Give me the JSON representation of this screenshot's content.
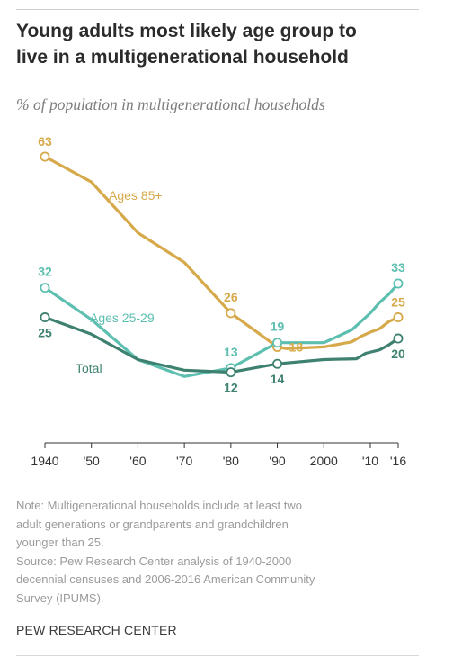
{
  "header": {
    "title_lines": [
      "Young adults most likely age group to",
      "live in a multigenerational household"
    ],
    "subtitle": "% of population in multigenerational households"
  },
  "colors": {
    "ages85": "#d6a94a",
    "ages2529": "#5dbfb0",
    "total": "#3f8170",
    "axis": "#333333",
    "tick_text": "#333333"
  },
  "chart_data": {
    "type": "line",
    "title": "Young adults most likely age group to live in a multigenerational household",
    "subtitle": "% of population in multigenerational households",
    "x_tick_values": [
      1940,
      1950,
      1960,
      1970,
      1980,
      1990,
      2000,
      2010,
      2016
    ],
    "x_tick_labels": [
      "1940",
      "'50",
      "'60",
      "'70",
      "'80",
      "'90",
      "2000",
      "'10",
      "'16"
    ],
    "xlim": [
      1940,
      2016
    ],
    "ylim": [
      0,
      63
    ],
    "series": [
      {
        "name": "Ages 85+",
        "color": "#d6a94a",
        "points": [
          [
            1940,
            63
          ],
          [
            1950,
            57
          ],
          [
            1960,
            45
          ],
          [
            1970,
            38
          ],
          [
            1980,
            26
          ],
          [
            1990,
            18
          ],
          [
            1992,
            17.6
          ],
          [
            2000,
            18
          ],
          [
            2006,
            19.2
          ],
          [
            2008,
            20.5
          ],
          [
            2010,
            21.5
          ],
          [
            2012,
            22.3
          ],
          [
            2014,
            24
          ],
          [
            2016,
            25
          ]
        ],
        "markers": [
          [
            1940,
            63,
            "63"
          ],
          [
            1980,
            26,
            "26"
          ],
          [
            1990,
            18,
            "18"
          ],
          [
            2016,
            25,
            "25"
          ]
        ]
      },
      {
        "name": "Ages 25-29",
        "color": "#5dbfb0",
        "points": [
          [
            1940,
            32
          ],
          [
            1950,
            24.5
          ],
          [
            1960,
            15
          ],
          [
            1970,
            11
          ],
          [
            1980,
            13
          ],
          [
            1990,
            19
          ],
          [
            2000,
            19
          ],
          [
            2006,
            22
          ],
          [
            2008,
            24
          ],
          [
            2010,
            26
          ],
          [
            2012,
            28.5
          ],
          [
            2014,
            30.5
          ],
          [
            2016,
            33
          ]
        ],
        "markers": [
          [
            1940,
            32,
            "32"
          ],
          [
            1980,
            13,
            "13"
          ],
          [
            1990,
            19,
            "19"
          ],
          [
            2016,
            33,
            "33"
          ]
        ]
      },
      {
        "name": "Total",
        "color": "#3f8170",
        "points": [
          [
            1940,
            25
          ],
          [
            1950,
            21
          ],
          [
            1960,
            15
          ],
          [
            1970,
            12.5
          ],
          [
            1980,
            12
          ],
          [
            1990,
            14
          ],
          [
            2000,
            15
          ],
          [
            2007,
            15.2
          ],
          [
            2009,
            16.5
          ],
          [
            2012,
            17.3
          ],
          [
            2014,
            18.5
          ],
          [
            2016,
            20
          ]
        ],
        "markers": [
          [
            1940,
            25,
            "25"
          ],
          [
            1980,
            12,
            "12"
          ],
          [
            1990,
            14,
            "14"
          ],
          [
            2016,
            20,
            "20"
          ]
        ]
      }
    ],
    "series_labels": [
      {
        "series": "Ages 85+",
        "text": "Ages 85+"
      },
      {
        "series": "Ages 25-29",
        "text": "Ages 25-29"
      },
      {
        "series": "Total",
        "text": "Total"
      }
    ],
    "grid": false,
    "legend": "inline labels"
  },
  "note": {
    "lines": [
      "Note: Multigenerational households include at least two",
      "adult generations or grandparents and grandchildren",
      "younger than 25.",
      "Source: Pew Research Center analysis of 1940-2000",
      "decennial censuses and 2006-2016 American Community",
      "Survey (IPUMS)."
    ]
  },
  "footer": {
    "source_org": "PEW RESEARCH CENTER"
  }
}
